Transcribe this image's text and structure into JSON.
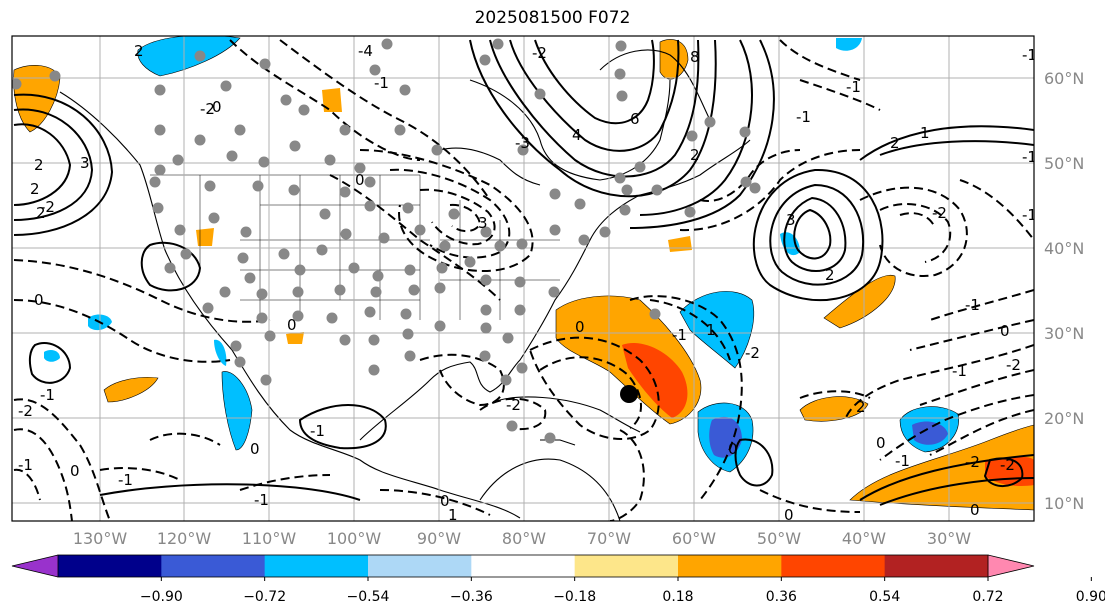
{
  "title": "2025081500 F072",
  "latitudes": [
    "60°N",
    "50°N",
    "40°N",
    "30°N",
    "20°N",
    "10°N"
  ],
  "longitudes": [
    "130°W",
    "120°W",
    "110°W",
    "100°W",
    "90°W",
    "80°W",
    "70°W",
    "60°W",
    "50°W",
    "40°W",
    "30°W"
  ],
  "colorbar": {
    "ticks": [
      "−0.90",
      "−0.72",
      "−0.54",
      "−0.36",
      "−0.18",
      "0.18",
      "0.36",
      "0.54",
      "0.72",
      "0.90"
    ],
    "colors": [
      "#9932cc",
      "#00008b",
      "#3a5ad6",
      "#00bfff",
      "#add8f6",
      "#ffffff",
      "#fde68a",
      "#ffa500",
      "#ff4500",
      "#b22222",
      "#ff88b0"
    ]
  },
  "contour_labels": [
    "2",
    "0",
    "-2",
    "-4",
    "8",
    "6",
    "4",
    "2",
    "-3",
    "-2",
    "3",
    "-1",
    "0",
    "-1",
    "1",
    "2",
    "0",
    "-2",
    "2",
    "1",
    "-1",
    "0",
    "-2",
    "-1",
    "3",
    "-1",
    "-2",
    "0",
    "2",
    "0",
    "-1",
    "-2",
    "0",
    "-1",
    "2",
    "0",
    "-2",
    "0",
    "-1",
    "2",
    "-2",
    "-1",
    "0",
    "1",
    "0",
    "-1",
    "-2",
    "2",
    "-2",
    "-1",
    "-1",
    "0",
    "3",
    "-1",
    "0",
    "-1",
    "-1"
  ]
}
